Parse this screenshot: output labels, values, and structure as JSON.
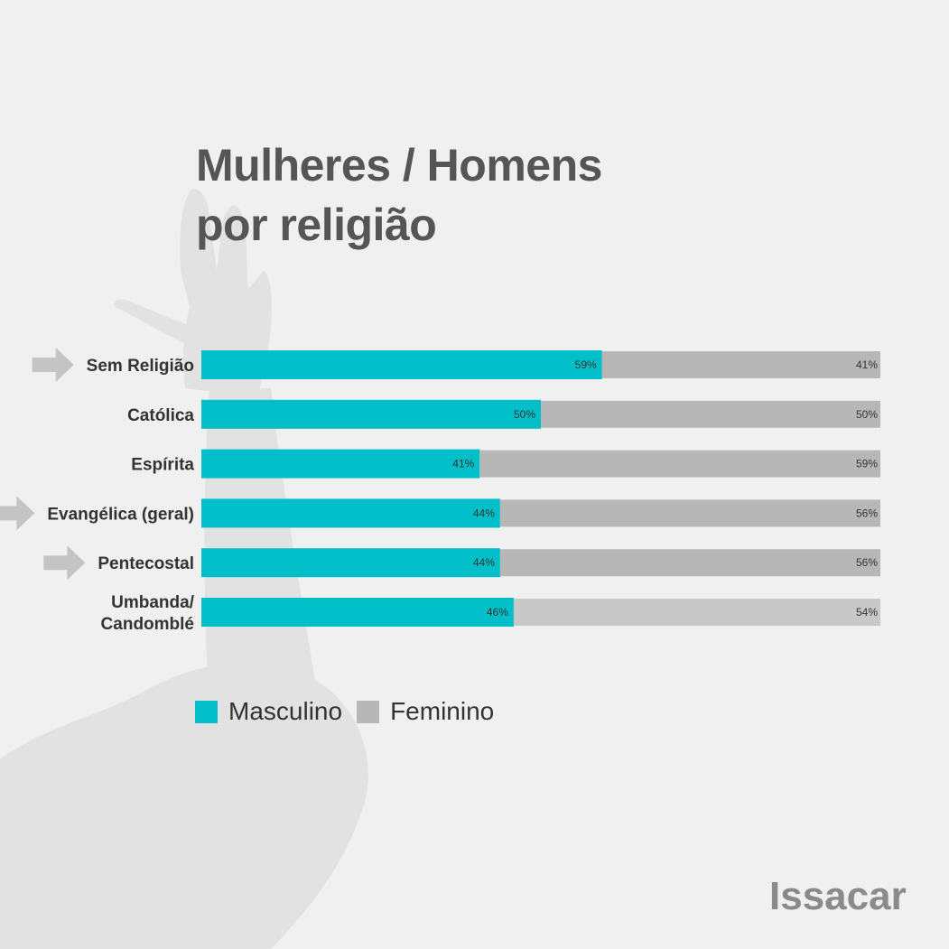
{
  "title_lines": [
    "Mulheres / Homens",
    "por religião"
  ],
  "brand": "Issacar",
  "colors": {
    "masculino": "#00bfc8",
    "feminino": "#b7b7b7",
    "feminino_light": "#c8c8c8",
    "arrow": "#c4c4c4"
  },
  "icons": {
    "row_marker": "arrow-right-icon"
  },
  "chart_data": {
    "type": "bar",
    "orientation": "horizontal",
    "stacked": true,
    "categories": [
      "Sem Religião",
      "Católica",
      "Espírita",
      "Evangélica (geral)",
      "Pentecostal",
      "Umbanda/ Candomblé"
    ],
    "category_lines": [
      [
        "Sem Religião"
      ],
      [
        "Católica"
      ],
      [
        "Espírita"
      ],
      [
        "Evangélica (geral)"
      ],
      [
        "Pentecostal"
      ],
      [
        "Umbanda/",
        "Candomblé"
      ]
    ],
    "series": [
      {
        "name": "Masculino",
        "values": [
          59,
          50,
          41,
          44,
          44,
          46
        ],
        "labels": [
          "59%",
          "50%",
          "41%",
          "44%",
          "44%",
          "46%"
        ]
      },
      {
        "name": "Feminino",
        "values": [
          41,
          50,
          59,
          56,
          56,
          54
        ],
        "labels": [
          "41%",
          "50%",
          "59%",
          "56%",
          "56%",
          "54%"
        ]
      }
    ],
    "marked_categories": [
      "Sem Religião",
      "Evangélica (geral)",
      "Pentecostal"
    ],
    "xlim": [
      0,
      100
    ],
    "legend": "bottom-left",
    "grid": false
  }
}
